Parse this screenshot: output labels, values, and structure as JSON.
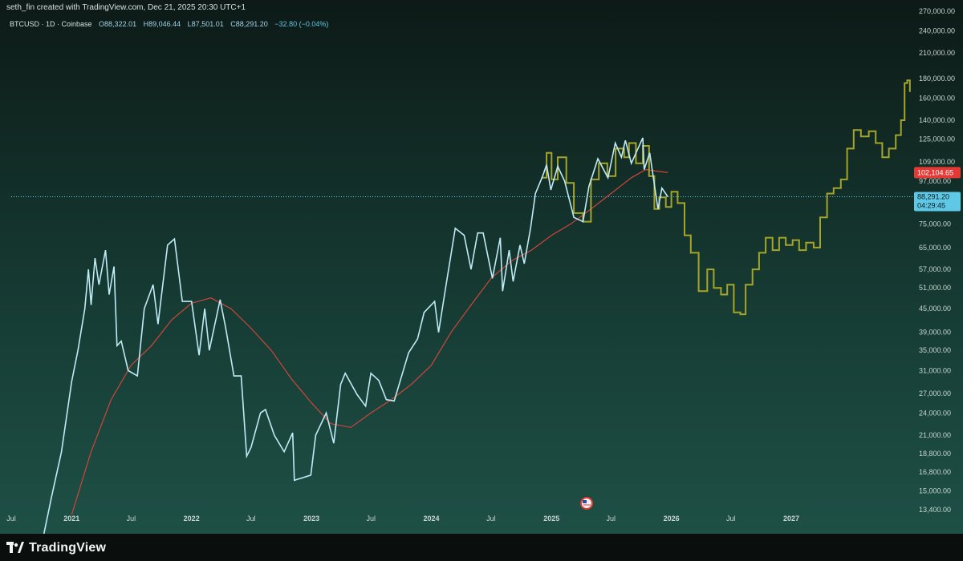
{
  "header": {
    "attribution": "seth_fin created with TradingView.com, Dec 21, 2025 20:30 UTC+1"
  },
  "symbol_info": {
    "symbol": "BTCUSD · 1D · Coinbase",
    "open": "O88,322.01",
    "high": "H89,046.44",
    "low": "L87,501.01",
    "close": "C88,291.20",
    "change": "−32.80 (−0.04%)"
  },
  "price_labels": {
    "ma_value": "102,104.65",
    "last_price": "88,291.20",
    "countdown": "04:29:45"
  },
  "colors": {
    "price_line": "#bfeaf6",
    "projection_line": "#a5a52a",
    "moving_average": "#d0453a",
    "ma_badge": "#e53935",
    "last_price_badge": "#5fc8e6",
    "axis_text": "#c8d6d2"
  },
  "footer": {
    "brand": "TradingView"
  },
  "icons": {
    "brand": "tradingview-logo-icon",
    "event": "us-flag-event-icon"
  },
  "chart_data": {
    "type": "line",
    "y_scale": "log",
    "ylim": [
      13400,
      270000
    ],
    "xlim": [
      "2020-07-01",
      "2027-12-31"
    ],
    "y_ticks": [
      13400,
      15000,
      16800,
      18800,
      21000,
      24000,
      27000,
      31000,
      35000,
      39000,
      45000,
      51000,
      57000,
      65000,
      75000,
      85000,
      97000,
      109000,
      125000,
      140000,
      160000,
      180000,
      210000,
      240000,
      270000
    ],
    "y_tick_labels": [
      "13,400.00",
      "15,000.00",
      "16,800.00",
      "18,800.00",
      "21,000.00",
      "24,000.00",
      "27,000.00",
      "31,000.00",
      "35,000.00",
      "39,000.00",
      "45,000.00",
      "51,000.00",
      "57,000.00",
      "65,000.00",
      "75,000.00",
      "85,000.00",
      "97,000.00",
      "109,000.00",
      "125,000.00",
      "140,000.00",
      "160,000.00",
      "180,000.00",
      "210,000.00",
      "240,000.00",
      "270,000.00"
    ],
    "x_ticks": [
      {
        "date": "2020-07-01",
        "label": "Jul",
        "bold": false
      },
      {
        "date": "2021-01-01",
        "label": "2021",
        "bold": true
      },
      {
        "date": "2021-07-01",
        "label": "Jul",
        "bold": false
      },
      {
        "date": "2022-01-01",
        "label": "2022",
        "bold": true
      },
      {
        "date": "2022-07-01",
        "label": "Jul",
        "bold": false
      },
      {
        "date": "2023-01-01",
        "label": "2023",
        "bold": true
      },
      {
        "date": "2023-07-01",
        "label": "Jul",
        "bold": false
      },
      {
        "date": "2024-01-01",
        "label": "2024",
        "bold": true
      },
      {
        "date": "2024-07-01",
        "label": "Jul",
        "bold": false
      },
      {
        "date": "2025-01-01",
        "label": "2025",
        "bold": true
      },
      {
        "date": "2025-07-01",
        "label": "Jul",
        "bold": false
      },
      {
        "date": "2026-01-01",
        "label": "2026",
        "bold": true
      },
      {
        "date": "2026-07-01",
        "label": "Jul",
        "bold": false
      },
      {
        "date": "2027-01-01",
        "label": "2027",
        "bold": true
      }
    ],
    "last_price": 88291.2,
    "ma_last": 102104.65,
    "series": [
      {
        "role": "price",
        "points": [
          [
            "2020-10-01",
            10800
          ],
          [
            "2020-11-01",
            14500
          ],
          [
            "2020-12-01",
            19000
          ],
          [
            "2021-01-01",
            29000
          ],
          [
            "2021-01-20",
            35000
          ],
          [
            "2021-02-10",
            45000
          ],
          [
            "2021-02-21",
            57000
          ],
          [
            "2021-03-01",
            46000
          ],
          [
            "2021-03-13",
            61000
          ],
          [
            "2021-03-25",
            52000
          ],
          [
            "2021-04-14",
            64000
          ],
          [
            "2021-04-25",
            49000
          ],
          [
            "2021-05-10",
            58000
          ],
          [
            "2021-05-19",
            36000
          ],
          [
            "2021-06-01",
            37000
          ],
          [
            "2021-06-22",
            31000
          ],
          [
            "2021-07-20",
            30000
          ],
          [
            "2021-08-10",
            45000
          ],
          [
            "2021-09-06",
            52000
          ],
          [
            "2021-09-21",
            41000
          ],
          [
            "2021-10-20",
            66000
          ],
          [
            "2021-11-10",
            68500
          ],
          [
            "2021-12-04",
            47000
          ],
          [
            "2022-01-01",
            47000
          ],
          [
            "2022-01-24",
            34000
          ],
          [
            "2022-02-10",
            45000
          ],
          [
            "2022-02-24",
            35000
          ],
          [
            "2022-03-29",
            47500
          ],
          [
            "2022-04-15",
            40000
          ],
          [
            "2022-05-10",
            30000
          ],
          [
            "2022-06-01",
            30000
          ],
          [
            "2022-06-18",
            18500
          ],
          [
            "2022-07-01",
            19500
          ],
          [
            "2022-07-30",
            24000
          ],
          [
            "2022-08-14",
            24500
          ],
          [
            "2022-09-10",
            21000
          ],
          [
            "2022-10-10",
            19000
          ],
          [
            "2022-11-05",
            21300
          ],
          [
            "2022-11-10",
            16000
          ],
          [
            "2022-12-30",
            16500
          ],
          [
            "2023-01-14",
            21000
          ],
          [
            "2023-02-15",
            24000
          ],
          [
            "2023-03-10",
            20000
          ],
          [
            "2023-03-31",
            28500
          ],
          [
            "2023-04-14",
            30500
          ],
          [
            "2023-05-20",
            26800
          ],
          [
            "2023-06-15",
            25000
          ],
          [
            "2023-07-01",
            30500
          ],
          [
            "2023-07-25",
            29200
          ],
          [
            "2023-08-17",
            26000
          ],
          [
            "2023-09-10",
            25800
          ],
          [
            "2023-10-24",
            34500
          ],
          [
            "2023-11-20",
            37500
          ],
          [
            "2023-12-10",
            44000
          ],
          [
            "2024-01-11",
            47000
          ],
          [
            "2024-01-23",
            39000
          ],
          [
            "2024-02-15",
            52000
          ],
          [
            "2024-03-14",
            73000
          ],
          [
            "2024-04-10",
            70000
          ],
          [
            "2024-05-01",
            57000
          ],
          [
            "2024-05-21",
            71000
          ],
          [
            "2024-06-07",
            71000
          ],
          [
            "2024-07-05",
            54000
          ],
          [
            "2024-07-29",
            69000
          ],
          [
            "2024-08-05",
            50000
          ],
          [
            "2024-08-25",
            64000
          ],
          [
            "2024-09-06",
            53000
          ],
          [
            "2024-09-27",
            66000
          ],
          [
            "2024-10-10",
            59000
          ],
          [
            "2024-10-29",
            73000
          ],
          [
            "2024-11-13",
            90000
          ],
          [
            "2024-12-05",
            100000
          ],
          [
            "2024-12-17",
            107000
          ],
          [
            "2024-12-30",
            92000
          ],
          [
            "2025-01-20",
            106000
          ],
          [
            "2025-02-10",
            97000
          ],
          [
            "2025-03-10",
            78000
          ],
          [
            "2025-04-07",
            76000
          ],
          [
            "2025-04-25",
            94000
          ],
          [
            "2025-05-22",
            111000
          ],
          [
            "2025-06-22",
            99000
          ],
          [
            "2025-07-14",
            122000
          ],
          [
            "2025-08-02",
            112000
          ],
          [
            "2025-08-14",
            124000
          ],
          [
            "2025-09-01",
            108000
          ],
          [
            "2025-10-06",
            126000
          ],
          [
            "2025-10-10",
            104000
          ],
          [
            "2025-10-27",
            115000
          ],
          [
            "2025-11-21",
            82000
          ],
          [
            "2025-12-03",
            93000
          ],
          [
            "2025-12-21",
            88291
          ]
        ]
      },
      {
        "role": "projection",
        "points": [
          [
            "2024-12-01",
            99000
          ],
          [
            "2024-12-17",
            115000
          ],
          [
            "2025-01-01",
            98000
          ],
          [
            "2025-01-20",
            112000
          ],
          [
            "2025-02-15",
            96000
          ],
          [
            "2025-03-10",
            80000
          ],
          [
            "2025-04-07",
            76000
          ],
          [
            "2025-05-01",
            98000
          ],
          [
            "2025-05-25",
            108000
          ],
          [
            "2025-06-20",
            100000
          ],
          [
            "2025-07-15",
            118000
          ],
          [
            "2025-08-10",
            112000
          ],
          [
            "2025-08-25",
            122000
          ],
          [
            "2025-09-15",
            108000
          ],
          [
            "2025-10-06",
            120000
          ],
          [
            "2025-10-25",
            100000
          ],
          [
            "2025-11-10",
            82000
          ],
          [
            "2025-11-25",
            88000
          ],
          [
            "2025-12-15",
            83000
          ],
          [
            "2026-01-01",
            91000
          ],
          [
            "2026-01-20",
            85000
          ],
          [
            "2026-02-10",
            70000
          ],
          [
            "2026-03-01",
            63000
          ],
          [
            "2026-03-25",
            50000
          ],
          [
            "2026-04-20",
            57000
          ],
          [
            "2026-05-10",
            51000
          ],
          [
            "2026-06-01",
            49000
          ],
          [
            "2026-06-20",
            52000
          ],
          [
            "2026-07-10",
            44000
          ],
          [
            "2026-07-30",
            43500
          ],
          [
            "2026-08-15",
            52000
          ],
          [
            "2026-09-05",
            57000
          ],
          [
            "2026-09-25",
            63000
          ],
          [
            "2026-10-15",
            69000
          ],
          [
            "2026-11-05",
            64000
          ],
          [
            "2026-11-25",
            69000
          ],
          [
            "2026-12-15",
            66000
          ],
          [
            "2027-01-05",
            68000
          ],
          [
            "2027-01-25",
            64000
          ],
          [
            "2027-02-15",
            67000
          ],
          [
            "2027-03-10",
            65000
          ],
          [
            "2027-03-30",
            78000
          ],
          [
            "2027-04-20",
            90000
          ],
          [
            "2027-05-10",
            93000
          ],
          [
            "2027-06-01",
            98000
          ],
          [
            "2027-06-20",
            118000
          ],
          [
            "2027-07-10",
            132000
          ],
          [
            "2027-08-01",
            127000
          ],
          [
            "2027-08-25",
            131000
          ],
          [
            "2027-09-15",
            122000
          ],
          [
            "2027-10-05",
            112000
          ],
          [
            "2027-10-25",
            118000
          ],
          [
            "2027-11-15",
            128000
          ],
          [
            "2027-12-01",
            140000
          ],
          [
            "2027-12-12",
            175000
          ],
          [
            "2027-12-20",
            178000
          ],
          [
            "2027-12-28",
            166000
          ]
        ]
      },
      {
        "role": "moving-average",
        "points": [
          [
            "2021-01-01",
            13000
          ],
          [
            "2021-03-01",
            19000
          ],
          [
            "2021-05-01",
            26000
          ],
          [
            "2021-07-01",
            32000
          ],
          [
            "2021-09-01",
            36000
          ],
          [
            "2021-11-01",
            42000
          ],
          [
            "2022-01-01",
            46500
          ],
          [
            "2022-03-01",
            48000
          ],
          [
            "2022-05-01",
            45000
          ],
          [
            "2022-07-01",
            40000
          ],
          [
            "2022-09-01",
            35000
          ],
          [
            "2022-11-01",
            29500
          ],
          [
            "2023-01-01",
            25500
          ],
          [
            "2023-03-01",
            22500
          ],
          [
            "2023-05-01",
            22000
          ],
          [
            "2023-07-01",
            24000
          ],
          [
            "2023-09-01",
            26000
          ],
          [
            "2023-11-01",
            28500
          ],
          [
            "2024-01-01",
            32000
          ],
          [
            "2024-03-01",
            39000
          ],
          [
            "2024-05-01",
            46000
          ],
          [
            "2024-07-01",
            54000
          ],
          [
            "2024-09-01",
            60000
          ],
          [
            "2024-11-01",
            64000
          ],
          [
            "2025-01-01",
            70000
          ],
          [
            "2025-03-01",
            75000
          ],
          [
            "2025-05-01",
            82000
          ],
          [
            "2025-07-01",
            90000
          ],
          [
            "2025-09-01",
            99000
          ],
          [
            "2025-10-15",
            104000
          ],
          [
            "2025-12-21",
            102104.65
          ]
        ]
      }
    ]
  }
}
